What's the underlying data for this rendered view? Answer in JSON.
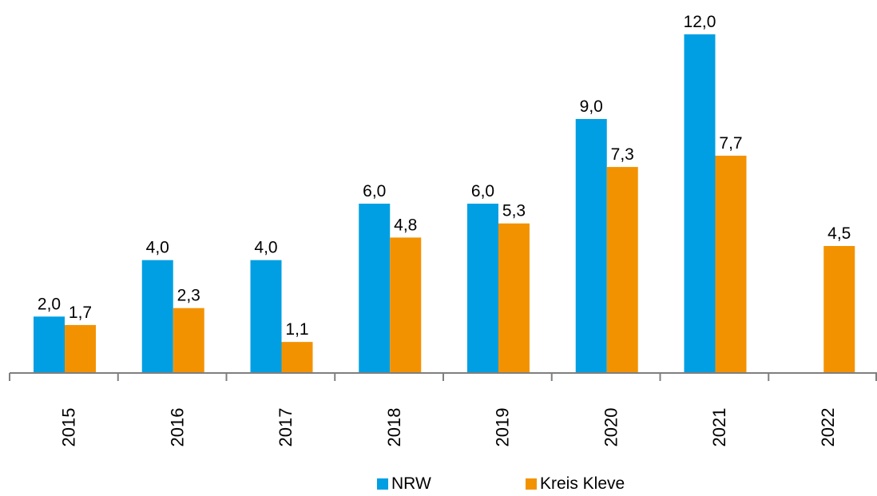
{
  "chart_data": {
    "type": "bar",
    "categories": [
      "2015",
      "2016",
      "2017",
      "2018",
      "2019",
      "2020",
      "2021",
      "2022"
    ],
    "series": [
      {
        "name": "NRW",
        "color": "#009fe3",
        "values": [
          2.0,
          4.0,
          4.0,
          6.0,
          6.0,
          9.0,
          12.0,
          null
        ],
        "labels": [
          "2,0",
          "4,0",
          "4,0",
          "6,0",
          "6,0",
          "9,0",
          "12,0",
          ""
        ]
      },
      {
        "name": "Kreis Kleve",
        "color": "#f39200",
        "values": [
          1.7,
          2.3,
          1.1,
          4.8,
          5.3,
          7.3,
          7.7,
          4.5
        ],
        "labels": [
          "1,7",
          "2,3",
          "1,1",
          "4,8",
          "5,3",
          "7,3",
          "7,7",
          "4,5"
        ]
      }
    ],
    "ylim": [
      0,
      12
    ],
    "grid": false,
    "legend": "bottom"
  },
  "legend": {
    "nrw_label": "NRW",
    "kleve_label": "Kreis Kleve"
  }
}
